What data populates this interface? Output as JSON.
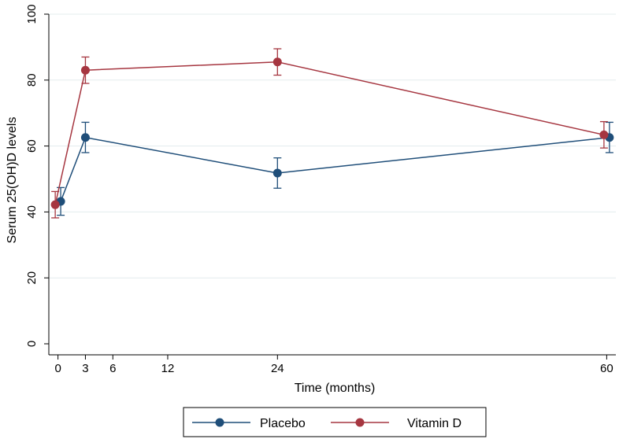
{
  "chart_data": {
    "type": "line",
    "title": "",
    "xlabel": "Time (months)",
    "ylabel": "Serum 25(OH)D levels",
    "xlim": [
      -1,
      61
    ],
    "ylim": [
      0,
      100
    ],
    "xticks": [
      0,
      3,
      6,
      12,
      24,
      60
    ],
    "yticks": [
      0,
      20,
      40,
      60,
      80,
      100
    ],
    "grid": true,
    "legend_position": "bottom",
    "series": [
      {
        "name": "Placebo",
        "color": "#1f4e79",
        "x": [
          0.3,
          3,
          24,
          60.3
        ],
        "y": [
          43.2,
          62.6,
          51.8,
          62.6
        ],
        "err_low": [
          39.0,
          58.0,
          47.2,
          58.0
        ],
        "err_high": [
          47.4,
          67.2,
          56.4,
          67.2
        ]
      },
      {
        "name": "Vitamin D",
        "color": "#a63640",
        "x": [
          -0.3,
          3,
          24,
          59.7
        ],
        "y": [
          42.2,
          83.0,
          85.5,
          63.4
        ],
        "err_low": [
          38.2,
          79.0,
          81.5,
          59.4
        ],
        "err_high": [
          46.2,
          87.0,
          89.5,
          67.4
        ]
      }
    ]
  }
}
